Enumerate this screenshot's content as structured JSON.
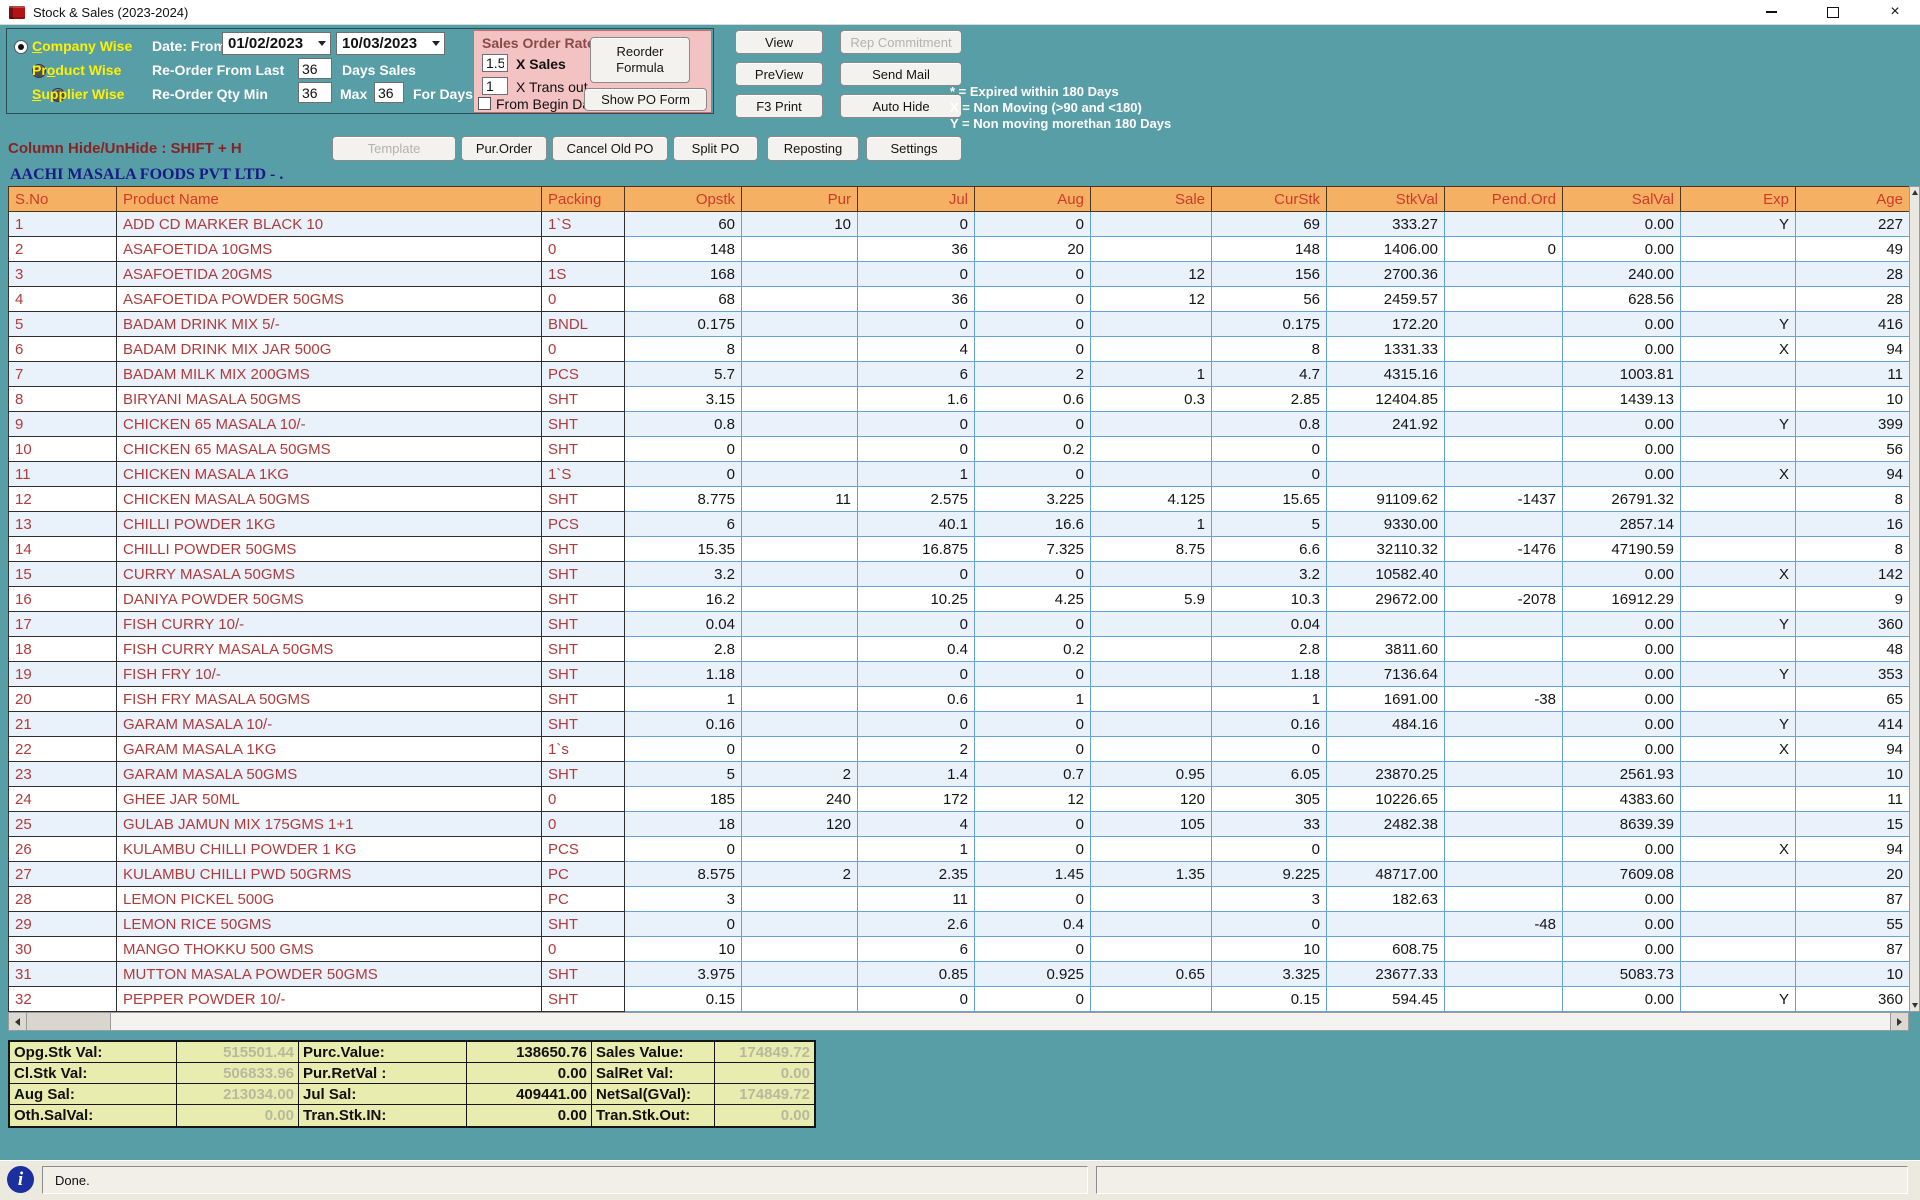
{
  "window": {
    "title": "Stock & Sales (2023-2024)"
  },
  "filters": {
    "radio_options": [
      {
        "pre": "",
        "u": "C",
        "post": "ompany Wise",
        "selected": true
      },
      {
        "pre": "Pr",
        "u": "o",
        "post": "duct Wise",
        "selected": false
      },
      {
        "pre": "",
        "u": "S",
        "post": "upplier Wise",
        "selected": false
      }
    ],
    "date_label": "Date: From",
    "date_from": "01/02/2023",
    "date_to": "10/03/2023",
    "reorder_from_label": "Re-Order From Last",
    "reorder_from_value": "36",
    "days_sales_label": "Days Sales",
    "reorder_qty_label": "Re-Order Qty Min",
    "qty_min_value": "36",
    "max_label": "Max",
    "qty_max_value": "36",
    "for_days_label": "For Days"
  },
  "sales_order_rate": {
    "title": "Sales Order Rate",
    "rate_sales": "1.5",
    "sales_label": "X  Sales",
    "rate_trans": "1",
    "trans_label": "X Trans out",
    "from_begin_label": "From Begin Date",
    "reorder_formula": "Reorder Formula",
    "show_po_form": "Show PO Form"
  },
  "actions": {
    "view": "View",
    "rep_commitment": "Rep Commitment",
    "preview": "PreView",
    "send_mail": "Send Mail",
    "f3_print": "F3 Print",
    "auto_hide": "Auto Hide",
    "template": "Template",
    "pur_order": "Pur.Order",
    "cancel_old_po": "Cancel Old PO",
    "split_po": "Split PO",
    "reposting": "Reposting",
    "settings": "Settings"
  },
  "legend": [
    "* = Expired within 180 Days",
    "X = Non Moving (>90 and <180)",
    "Y = Non moving morethan 180 Days"
  ],
  "hints": {
    "column_hide": "Column Hide/UnHide : SHIFT + H"
  },
  "company": "AACHI MASALA FOODS PVT LTD - .",
  "table": {
    "columns": [
      "S.No",
      "Product Name",
      "Packing",
      "Opstk",
      "Pur",
      "Jul",
      "Aug",
      "Sale",
      "CurStk",
      "StkVal",
      "Pend.Ord",
      "SalVal",
      "Exp",
      "Age"
    ],
    "rows": [
      [
        "1",
        "ADD CD MARKER BLACK 10",
        "1`S",
        "60",
        "10",
        "0",
        "0",
        "",
        "69",
        "333.27",
        "",
        "0.00",
        "Y",
        "227"
      ],
      [
        "2",
        "ASAFOETIDA 10GMS",
        "0",
        "148",
        "",
        "36",
        "20",
        "",
        "148",
        "1406.00",
        "0",
        "0.00",
        "",
        "49"
      ],
      [
        "3",
        "ASAFOETIDA 20GMS",
        "1S",
        "168",
        "",
        "0",
        "0",
        "12",
        "156",
        "2700.36",
        "",
        "240.00",
        "",
        "28"
      ],
      [
        "4",
        "ASAFOETIDA POWDER 50GMS",
        "0",
        "68",
        "",
        "36",
        "0",
        "12",
        "56",
        "2459.57",
        "",
        "628.56",
        "",
        "28"
      ],
      [
        "5",
        "BADAM DRINK MIX 5/-",
        "BNDL",
        "0.175",
        "",
        "0",
        "0",
        "",
        "0.175",
        "172.20",
        "",
        "0.00",
        "Y",
        "416"
      ],
      [
        "6",
        "BADAM DRINK MIX JAR 500G",
        "0",
        "8",
        "",
        "4",
        "0",
        "",
        "8",
        "1331.33",
        "",
        "0.00",
        "X",
        "94"
      ],
      [
        "7",
        "BADAM MILK MIX 200GMS",
        "PCS",
        "5.7",
        "",
        "6",
        "2",
        "1",
        "4.7",
        "4315.16",
        "",
        "1003.81",
        "",
        "11"
      ],
      [
        "8",
        "BIRYANI MASALA 50GMS",
        "SHT",
        "3.15",
        "",
        "1.6",
        "0.6",
        "0.3",
        "2.85",
        "12404.85",
        "",
        "1439.13",
        "",
        "10"
      ],
      [
        "9",
        "CHICKEN 65 MASALA 10/-",
        "SHT",
        "0.8",
        "",
        "0",
        "0",
        "",
        "0.8",
        "241.92",
        "",
        "0.00",
        "Y",
        "399"
      ],
      [
        "10",
        "CHICKEN 65 MASALA 50GMS",
        "SHT",
        "0",
        "",
        "0",
        "0.2",
        "",
        "0",
        "",
        "",
        "0.00",
        "",
        "56"
      ],
      [
        "11",
        "CHICKEN MASALA 1KG",
        "1`S",
        "0",
        "",
        "1",
        "0",
        "",
        "0",
        "",
        "",
        "0.00",
        "X",
        "94"
      ],
      [
        "12",
        "CHICKEN MASALA 50GMS",
        "SHT",
        "8.775",
        "11",
        "2.575",
        "3.225",
        "4.125",
        "15.65",
        "91109.62",
        "-1437",
        "26791.32",
        "",
        "8"
      ],
      [
        "13",
        "CHILLI POWDER 1KG",
        "PCS",
        "6",
        "",
        "40.1",
        "16.6",
        "1",
        "5",
        "9330.00",
        "",
        "2857.14",
        "",
        "16"
      ],
      [
        "14",
        "CHILLI POWDER 50GMS",
        "SHT",
        "15.35",
        "",
        "16.875",
        "7.325",
        "8.75",
        "6.6",
        "32110.32",
        "-1476",
        "47190.59",
        "",
        "8"
      ],
      [
        "15",
        "CURRY MASALA 50GMS",
        "SHT",
        "3.2",
        "",
        "0",
        "0",
        "",
        "3.2",
        "10582.40",
        "",
        "0.00",
        "X",
        "142"
      ],
      [
        "16",
        "DANIYA POWDER 50GMS",
        "SHT",
        "16.2",
        "",
        "10.25",
        "4.25",
        "5.9",
        "10.3",
        "29672.00",
        "-2078",
        "16912.29",
        "",
        "9"
      ],
      [
        "17",
        "FISH CURRY 10/-",
        "SHT",
        "0.04",
        "",
        "0",
        "0",
        "",
        "0.04",
        "",
        "",
        "0.00",
        "Y",
        "360"
      ],
      [
        "18",
        "FISH CURRY MASALA 50GMS",
        "SHT",
        "2.8",
        "",
        "0.4",
        "0.2",
        "",
        "2.8",
        "3811.60",
        "",
        "0.00",
        "",
        "48"
      ],
      [
        "19",
        "FISH FRY 10/-",
        "SHT",
        "1.18",
        "",
        "0",
        "0",
        "",
        "1.18",
        "7136.64",
        "",
        "0.00",
        "Y",
        "353"
      ],
      [
        "20",
        "FISH FRY MASALA 50GMS",
        "SHT",
        "1",
        "",
        "0.6",
        "1",
        "",
        "1",
        "1691.00",
        "-38",
        "0.00",
        "",
        "65"
      ],
      [
        "21",
        "GARAM MASALA 10/-",
        "SHT",
        "0.16",
        "",
        "0",
        "0",
        "",
        "0.16",
        "484.16",
        "",
        "0.00",
        "Y",
        "414"
      ],
      [
        "22",
        "GARAM MASALA 1KG",
        "1`s",
        "0",
        "",
        "2",
        "0",
        "",
        "0",
        "",
        "",
        "0.00",
        "X",
        "94"
      ],
      [
        "23",
        "GARAM MASALA 50GMS",
        "SHT",
        "5",
        "2",
        "1.4",
        "0.7",
        "0.95",
        "6.05",
        "23870.25",
        "",
        "2561.93",
        "",
        "10"
      ],
      [
        "24",
        "GHEE JAR 50ML",
        "0",
        "185",
        "240",
        "172",
        "12",
        "120",
        "305",
        "10226.65",
        "",
        "4383.60",
        "",
        "11"
      ],
      [
        "25",
        "GULAB JAMUN MIX 175GMS 1+1",
        "0",
        "18",
        "120",
        "4",
        "0",
        "105",
        "33",
        "2482.38",
        "",
        "8639.39",
        "",
        "15"
      ],
      [
        "26",
        "KULAMBU CHILLI POWDER 1 KG",
        "PCS",
        "0",
        "",
        "1",
        "0",
        "",
        "0",
        "",
        "",
        "0.00",
        "X",
        "94"
      ],
      [
        "27",
        "KULAMBU CHILLI PWD 50GRMS",
        "PC",
        "8.575",
        "2",
        "2.35",
        "1.45",
        "1.35",
        "9.225",
        "48717.00",
        "",
        "7609.08",
        "",
        "20"
      ],
      [
        "28",
        "LEMON PICKEL 500G",
        "PC",
        "3",
        "",
        "11",
        "0",
        "",
        "3",
        "182.63",
        "",
        "0.00",
        "",
        "87"
      ],
      [
        "29",
        "LEMON RICE 50GMS",
        "SHT",
        "0",
        "",
        "2.6",
        "0.4",
        "",
        "0",
        "",
        "-48",
        "0.00",
        "",
        "55"
      ],
      [
        "30",
        "MANGO THOKKU 500 GMS",
        "0",
        "10",
        "",
        "6",
        "0",
        "",
        "10",
        "608.75",
        "",
        "0.00",
        "",
        "87"
      ],
      [
        "31",
        "MUTTON MASALA POWDER 50GMS",
        "SHT",
        "3.975",
        "",
        "0.85",
        "0.925",
        "0.65",
        "3.325",
        "23677.33",
        "",
        "5083.73",
        "",
        "10"
      ],
      [
        "32",
        "PEPPER POWDER 10/-",
        "SHT",
        "0.15",
        "",
        "0",
        "0",
        "",
        "0.15",
        "594.45",
        "",
        "0.00",
        "Y",
        "360"
      ]
    ]
  },
  "summary": {
    "rows": [
      [
        "Opg.Stk Val:",
        "515501.44",
        "Purc.Value:",
        "138650.76",
        "Sales Value:",
        "174849.72"
      ],
      [
        "Cl.Stk Val:",
        "506833.96",
        "Pur.RetVal :",
        "0.00",
        "SalRet Val:",
        "0.00"
      ],
      [
        "Aug Sal:",
        "213034.00",
        "Jul Sal:",
        "409441.00",
        "NetSal(GVal):",
        "174849.72"
      ],
      [
        "Oth.SalVal:",
        "0.00",
        "Tran.Stk.IN:",
        "0.00",
        "Tran.Stk.Out:",
        "0.00"
      ]
    ],
    "muted_value_cols": [
      1,
      5
    ]
  },
  "status": {
    "message": "Done."
  },
  "colors": {
    "teal_bg": "#589EA6",
    "header_orange": "#F6B064",
    "header_text": "#D13A2B",
    "row_alt_blue": "#E9F1FB",
    "grid_blue": "#64A1DD",
    "product_text": "#B03B3B",
    "summary_bg": "#E9ECAF",
    "pink_panel": "#F3C2C2",
    "radio_label_yellow": "#FFF000",
    "hint_red": "#8B2222",
    "company_navy": "#191989"
  }
}
